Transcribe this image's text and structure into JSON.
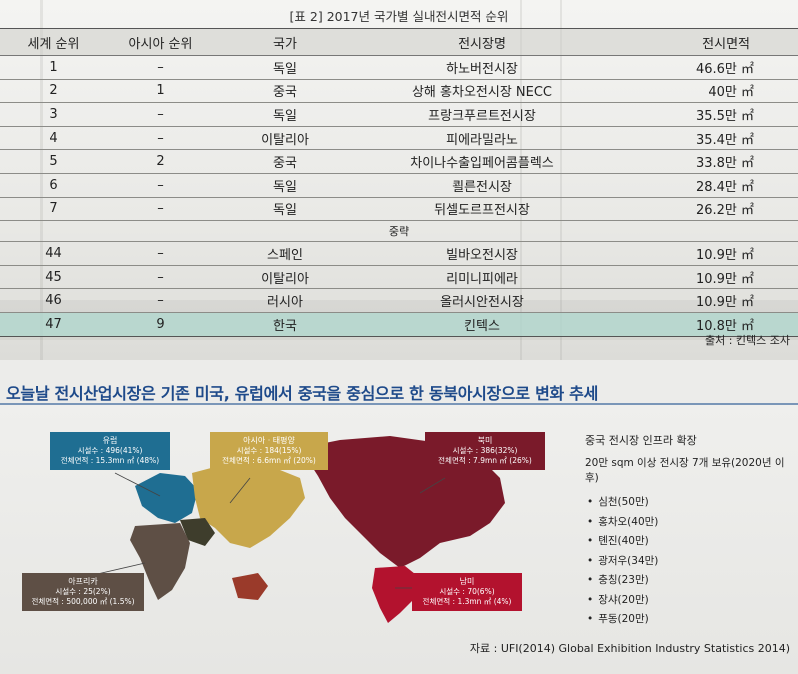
{
  "caption": "[표 2] 2017년 국가별 실내전시면적 순위",
  "table": {
    "headers": [
      "세계 순위",
      "아시아 순위",
      "국가",
      "전시장명",
      "전시면적"
    ],
    "rows": [
      [
        "1",
        "–",
        "독일",
        "하노버전시장",
        "46.6만 ㎡"
      ],
      [
        "2",
        "1",
        "중국",
        "상해 홍차오전시장 NECC",
        "40만 ㎡"
      ],
      [
        "3",
        "–",
        "독일",
        "프랑크푸르트전시장",
        "35.5만 ㎡"
      ],
      [
        "4",
        "–",
        "이탈리아",
        "피에라밀라노",
        "35.4만 ㎡"
      ],
      [
        "5",
        "2",
        "중국",
        "차이나수출입페어콤플렉스",
        "33.8만 ㎡"
      ],
      [
        "6",
        "–",
        "독일",
        "쾰른전시장",
        "28.4만 ㎡"
      ],
      [
        "7",
        "–",
        "독일",
        "뒤셀도르프전시장",
        "26.2만 ㎡"
      ]
    ],
    "omitted": "중략",
    "rows2": [
      [
        "44",
        "–",
        "스페인",
        "빌바오전시장",
        "10.9만 ㎡"
      ],
      [
        "45",
        "–",
        "이탈리아",
        "리미니피에라",
        "10.9만 ㎡"
      ],
      [
        "46",
        "–",
        "러시아",
        "올러시안전시장",
        "10.9만 ㎡"
      ],
      [
        "47",
        "9",
        "한국",
        "킨텍스",
        "10.8만 ㎡"
      ]
    ]
  },
  "source1": "출처 : 킨텍스 조사",
  "headline": "오늘날 전시산업시장은 기존 미국, 유럽에서 중국을 중심으로 한 동북아시장으로 변화 추세",
  "regions": {
    "europe": {
      "name": "유럽",
      "l1": "시설수 : 496(41%)",
      "l2": "전체면적 : 15.3mn ㎡ (48%)",
      "color": "#1f6e92"
    },
    "asia": {
      "name": "아시아 · 태평양",
      "l1": "시설수 : 184(15%)",
      "l2": "전체면적 : 6.6mn ㎡ (20%)",
      "color": "#c8a74b"
    },
    "namerica": {
      "name": "북미",
      "l1": "시설수 : 386(32%)",
      "l2": "전체면적 : 7.9mn ㎡ (26%)",
      "color": "#7a1a2a"
    },
    "africa": {
      "name": "아프리카",
      "l1": "시설수 : 25(2%)",
      "l2": "전체면적 : 500,000 ㎡ (1.5%)",
      "color": "#5e4f45"
    },
    "samerica": {
      "name": "남미",
      "l1": "시설수 : 70(6%)",
      "l2": "전체면적 : 1.3mn ㎡ (4%)",
      "color": "#b3122e"
    },
    "mideast_color": "#3e3d2c",
    "oceania_color": "#9a3a2a"
  },
  "side": {
    "title": "중국 전시장 인프라 확장",
    "subtitle": "20만 sqm 이상 전시장 7개 보유(2020년 이후)",
    "items": [
      "심천(50만)",
      "홍차오(40만)",
      "톈진(40만)",
      "광저우(34만)",
      "충칭(23만)",
      "장샤(20만)",
      "푸동(20만)"
    ]
  },
  "source2": "자료 : UFI(2014) Global Exhibition Industry Statistics 2014)"
}
